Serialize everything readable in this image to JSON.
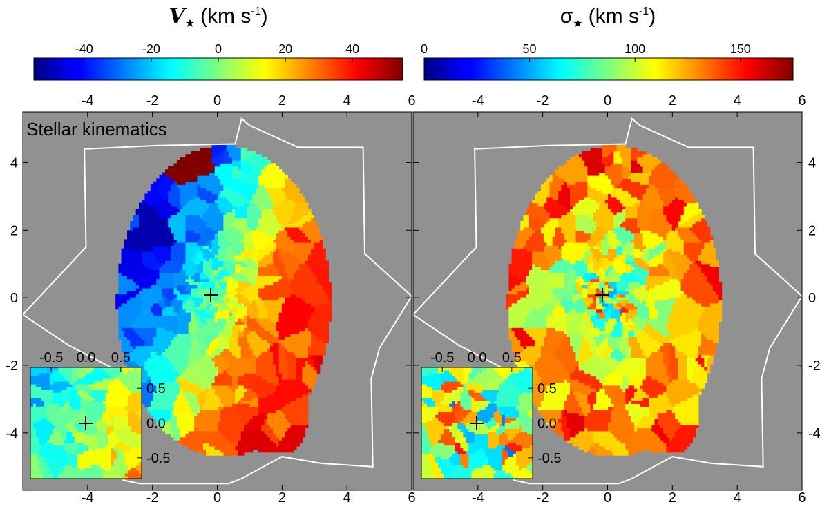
{
  "chart_data": [
    {
      "type": "heatmap",
      "panel": "left",
      "annotation": "Stellar kinematics",
      "colorbar": {
        "title_symbol": "V",
        "title_sub": "★",
        "title_unit": "(km s",
        "title_exp": "-1",
        "title_close": ")",
        "range": [
          -55,
          55
        ],
        "ticks": [
          -40,
          -20,
          0,
          20,
          40
        ],
        "tick_labels": [
          "-40",
          "-20",
          "0",
          "20",
          "40"
        ]
      },
      "xlim": [
        -6,
        6
      ],
      "ylim": [
        -5.7,
        5.5
      ],
      "x_ticks": [
        -4,
        -2,
        0,
        2,
        4,
        6
      ],
      "x_tick_labels": [
        "-4",
        "-2",
        "0",
        "2",
        "4",
        "6"
      ],
      "y_ticks": [
        -4,
        -2,
        0,
        2,
        4
      ],
      "y_tick_labels": [
        "-4",
        "-2",
        "0",
        "2",
        "4"
      ],
      "inset": {
        "xlim": [
          -0.8,
          0.8
        ],
        "ylim": [
          -0.8,
          0.8
        ],
        "x_ticks": [
          -0.5,
          0.0,
          0.5
        ],
        "x_tick_labels": [
          "-0.5",
          "0.0",
          "0.5"
        ],
        "y_ticks": [
          0.5,
          0.0,
          -0.5
        ],
        "y_tick_labels": [
          "0.5",
          "0.0",
          "-0.5"
        ]
      }
    },
    {
      "type": "heatmap",
      "panel": "right",
      "colorbar": {
        "title_symbol": "σ",
        "title_sub": "★",
        "title_unit": "(km s",
        "title_exp": "-1",
        "title_close": ")",
        "range": [
          0,
          175
        ],
        "ticks": [
          0,
          50,
          100,
          150
        ],
        "tick_labels": [
          "0",
          "50",
          "100",
          "150"
        ]
      },
      "xlim": [
        -6,
        6
      ],
      "ylim": [
        -5.7,
        5.5
      ],
      "x_ticks": [
        -4,
        -2,
        0,
        2,
        4,
        6
      ],
      "x_tick_labels": [
        "-4",
        "-2",
        "0",
        "2",
        "4",
        "6"
      ],
      "y_ticks": [
        -4,
        -2,
        0,
        2,
        4
      ],
      "y_tick_labels": [
        "-4",
        "-2",
        "0",
        "2",
        "4"
      ],
      "inset": {
        "xlim": [
          -0.8,
          0.8
        ],
        "ylim": [
          -0.8,
          0.8
        ],
        "x_ticks": [
          -0.5,
          0.0,
          0.5
        ],
        "x_tick_labels": [
          "-0.5",
          "0.0",
          "0.5"
        ],
        "y_ticks": [
          0.5,
          0.0,
          -0.5
        ],
        "y_tick_labels": [
          "0.5",
          "0.0",
          "-0.5"
        ]
      }
    }
  ],
  "colors": {
    "background": "#919191",
    "outline": "#ffffff",
    "colormap": "jet"
  }
}
